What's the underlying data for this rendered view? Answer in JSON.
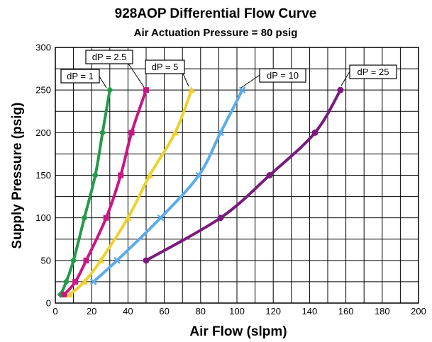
{
  "chart_data": {
    "type": "line",
    "title": "928AOP Differential Flow Curve",
    "subtitle": "Air Actuation Pressure = 80 psig",
    "xlabel": "Air Flow (slpm)",
    "ylabel": "Supply Pressure (psig)",
    "xlim": [
      0,
      200
    ],
    "ylim": [
      0,
      300
    ],
    "xticks": [
      "0",
      "20",
      "40",
      "60",
      "80",
      "100",
      "120",
      "140",
      "160",
      "180",
      "200"
    ],
    "yticks": [
      "0",
      "50",
      "100",
      "150",
      "200",
      "250",
      "300"
    ],
    "grid": true,
    "series": [
      {
        "name": "dP = 1",
        "color": "#239b48",
        "marker": "diamond",
        "x": [
          3,
          6,
          10,
          16,
          22,
          26,
          30
        ],
        "y": [
          10,
          25,
          50,
          100,
          150,
          200,
          250
        ]
      },
      {
        "name": "dP = 2.5",
        "color": "#cc1486",
        "marker": "square",
        "x": [
          5,
          11,
          17,
          28,
          36,
          42,
          50
        ],
        "y": [
          10,
          25,
          50,
          100,
          150,
          200,
          250
        ]
      },
      {
        "name": "dP = 5",
        "color": "#efd12b",
        "marker": "triangle",
        "x": [
          8,
          16,
          25,
          40,
          52,
          66,
          75
        ],
        "y": [
          10,
          25,
          50,
          100,
          150,
          200,
          250
        ]
      },
      {
        "name": "dP = 10",
        "color": "#5aacea",
        "marker": "x",
        "x": [
          21,
          34,
          58,
          79,
          91,
          103
        ],
        "y": [
          25,
          50,
          100,
          150,
          200,
          250
        ]
      },
      {
        "name": "dP = 25",
        "color": "#7a1a7e",
        "marker": "circle",
        "x": [
          50,
          91,
          118,
          143,
          157
        ],
        "y": [
          50,
          100,
          150,
          200,
          250
        ]
      }
    ]
  }
}
